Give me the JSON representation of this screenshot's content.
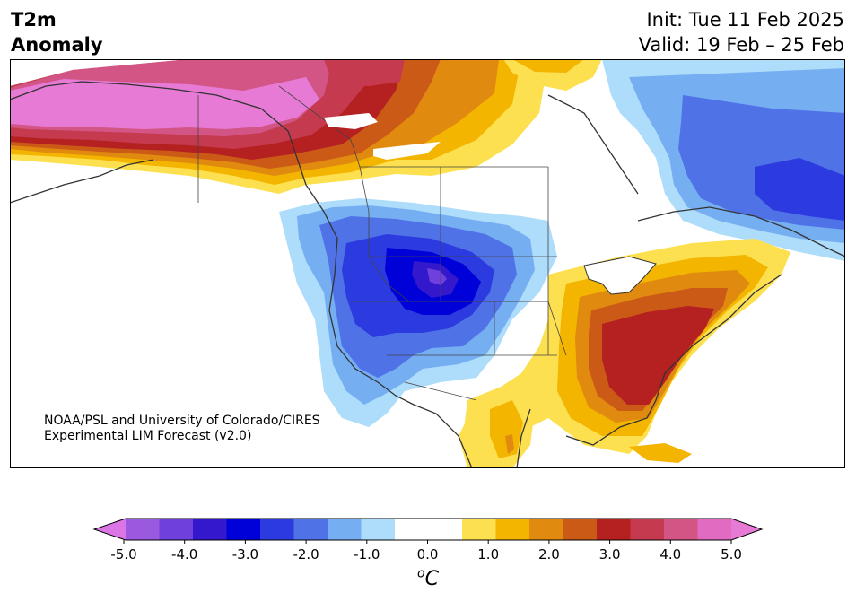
{
  "header": {
    "title_line1": "T2m",
    "title_line2": "Anomaly",
    "init": "Init: Tue 11 Feb 2025",
    "valid": "Valid: 19 Feb – 25 Feb"
  },
  "credit": {
    "line1": "NOAA/PSL and University of Colorado/CIRES",
    "line2": "Experimental LIM Forecast (v2.0)"
  },
  "colorbar": {
    "units": "oC",
    "tick_labels": [
      "-5.0",
      "-4.0",
      "-3.0",
      "-2.0",
      "-1.0",
      "0.0",
      "1.0",
      "2.0",
      "3.0",
      "4.0",
      "5.0"
    ],
    "colors": [
      "#9b59e0",
      "#7040dd",
      "#3318cc",
      "#0000d8",
      "#2b3be0",
      "#4f72e6",
      "#76aef2",
      "#aedcfb",
      "#ffffff",
      "#ffffff",
      "#fde04f",
      "#f3b500",
      "#e08a10",
      "#cc5a17",
      "#b52121",
      "#c53a4e",
      "#d25585",
      "#e06bc1"
    ],
    "min_color": "#dc75e6",
    "max_color": "#e67ad4"
  }
}
